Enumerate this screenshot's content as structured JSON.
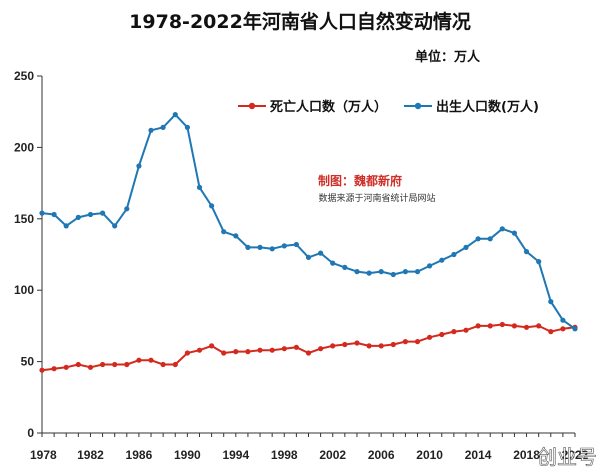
{
  "colors": {
    "deaths": "#d42a1e",
    "births": "#1f77b4",
    "axis": "#333333"
  },
  "chart_data": {
    "type": "line",
    "title": "1978-2022年河南省人口自然变动情况",
    "unit": "单位：万人",
    "xlabel": "",
    "ylabel": "",
    "xlim": [
      1978,
      2022
    ],
    "ylim": [
      0,
      250
    ],
    "grid": false,
    "legend_position": "top-right",
    "x_ticks": [
      1978,
      1982,
      1986,
      1990,
      1994,
      1998,
      2002,
      2006,
      2010,
      2014,
      2018,
      2022
    ],
    "x_tick_labels": [
      "1978",
      "1982",
      "1986",
      "1990",
      "1994",
      "1998",
      "2002",
      "2006",
      "2010",
      "2014",
      "2018",
      "2022"
    ],
    "y_ticks": [
      0,
      50,
      100,
      150,
      200,
      250
    ],
    "y_tick_labels": [
      "0",
      "50",
      "100",
      "150",
      "200",
      "250"
    ],
    "x": [
      1978,
      1979,
      1980,
      1981,
      1982,
      1983,
      1984,
      1985,
      1986,
      1987,
      1988,
      1989,
      1990,
      1991,
      1992,
      1993,
      1994,
      1995,
      1996,
      1997,
      1998,
      1999,
      2000,
      2001,
      2002,
      2003,
      2004,
      2005,
      2006,
      2007,
      2008,
      2009,
      2010,
      2011,
      2012,
      2013,
      2014,
      2015,
      2016,
      2017,
      2018,
      2019,
      2020,
      2021,
      2022
    ],
    "series": [
      {
        "name": "死亡人口数（万人）",
        "key": "deaths",
        "values": [
          44,
          45,
          46,
          48,
          46,
          48,
          48,
          48,
          51,
          51,
          48,
          48,
          56,
          58,
          61,
          56,
          57,
          57,
          58,
          58,
          59,
          60,
          56,
          59,
          61,
          62,
          63,
          61,
          61,
          62,
          64,
          64,
          67,
          69,
          71,
          72,
          75,
          75,
          76,
          75,
          74,
          75,
          71,
          73,
          74
        ]
      },
      {
        "name": "出生人口数(万人)",
        "key": "births",
        "values": [
          154,
          153,
          145,
          151,
          153,
          154,
          145,
          157,
          187,
          212,
          214,
          223,
          214,
          172,
          159,
          141,
          138,
          130,
          130,
          129,
          131,
          132,
          123,
          126,
          119,
          116,
          113,
          112,
          113,
          111,
          113,
          113,
          117,
          121,
          125,
          130,
          136,
          136,
          143,
          140,
          127,
          120,
          92,
          79,
          73
        ]
      }
    ],
    "annotations": {
      "credit": "制图：魏都新府",
      "source": "数据来源于河南省统计局网站"
    },
    "watermark": "创业号"
  }
}
